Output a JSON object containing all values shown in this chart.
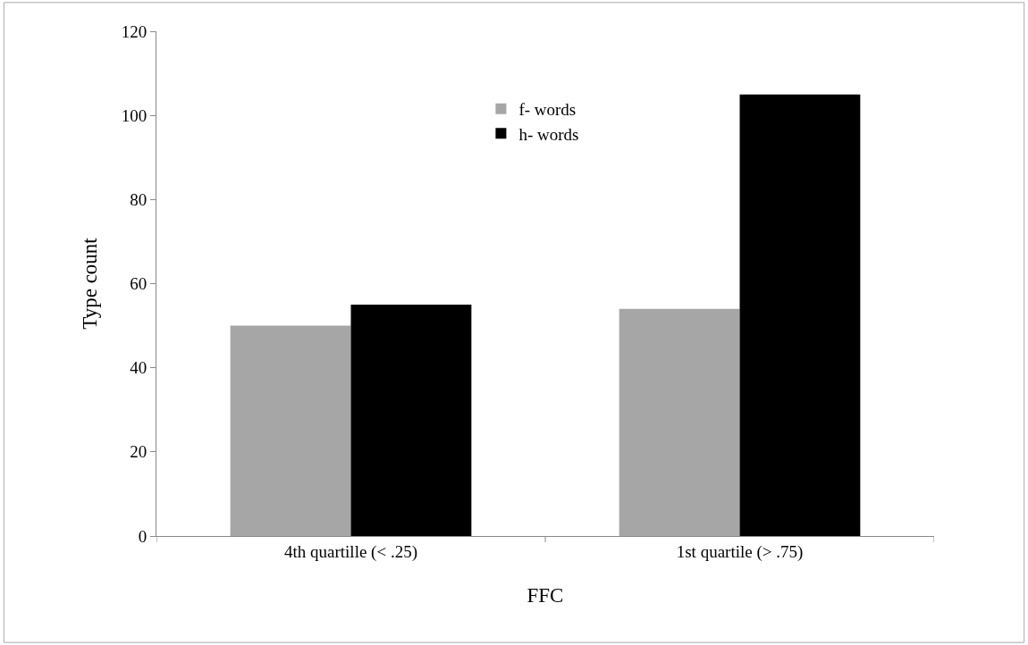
{
  "chart_data": {
    "type": "bar",
    "xlabel": "FFC",
    "ylabel": "Type count",
    "categories": [
      "4th quartille (< .25)",
      "1st quartile (> .75)"
    ],
    "series": [
      {
        "name": "f- words",
        "color": "#a6a6a6",
        "values": [
          50,
          54
        ]
      },
      {
        "name": "h- words",
        "color": "#000000",
        "values": [
          55,
          105
        ]
      }
    ],
    "ylim": [
      0,
      120
    ],
    "yticks": [
      0,
      20,
      40,
      60,
      80,
      100,
      120
    ],
    "legend": "top center"
  }
}
